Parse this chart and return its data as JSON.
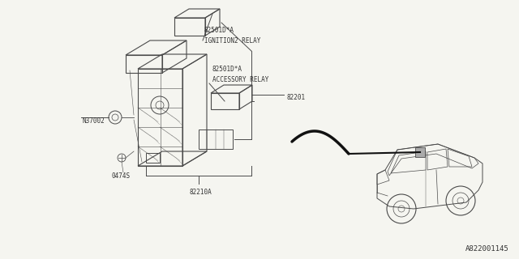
{
  "bg_color": "#f5f5f0",
  "line_color": "#4a4a4a",
  "text_color": "#333333",
  "footer_text": "A822001145",
  "label_ignition": "82501D*A\nIGNITION2 RELAY",
  "label_accessory": "82501D*A\nACCESSORY RELAY",
  "label_82201": "82201",
  "label_82210A": "82210A",
  "label_N37002": "N37002",
  "label_0474S": "0474S",
  "font_size": 5.5,
  "footer_font_size": 6.5,
  "wire_color": "#111111",
  "wire_linewidth": 2.5,
  "bracket_color": "#4a4a4a",
  "bracket_lw": 0.7
}
